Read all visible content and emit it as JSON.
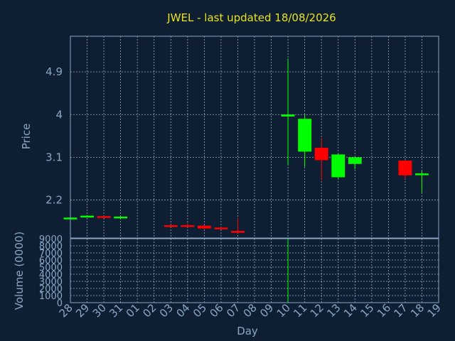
{
  "chart_data": {
    "type": "candlestick",
    "title": "JWEL - last updated 18/08/2026",
    "xlabel": "Day",
    "price_panel": {
      "ylabel": "Price",
      "ylim": [
        1.4,
        5.65
      ],
      "yticks": [
        2.2,
        3.1,
        4,
        4.9
      ],
      "ytick_labels": [
        "2.2",
        "3.1",
        "4",
        "4.9"
      ]
    },
    "volume_panel": {
      "ylabel": "Volume (0000)",
      "ylim": [
        0,
        9000
      ],
      "yticks": [
        0,
        1000,
        2000,
        3000,
        4000,
        5000,
        6000,
        7000,
        8000,
        9000
      ],
      "ytick_labels": [
        "0",
        "1000",
        "2000",
        "3000",
        "4000",
        "5000",
        "6000",
        "7000",
        "8000",
        "9000"
      ]
    },
    "x_labels": [
      "28",
      "29",
      "30",
      "31",
      "01",
      "02",
      "03",
      "04",
      "05",
      "06",
      "07",
      "08",
      "09",
      "10",
      "11",
      "12",
      "13",
      "14",
      "15",
      "16",
      "17",
      "18",
      "19"
    ],
    "candles": [
      {
        "x": 0,
        "open": 1.82,
        "close": 1.83,
        "high": 1.84,
        "low": 1.81
      },
      {
        "x": 1,
        "open": 1.85,
        "close": 1.87,
        "high": 1.88,
        "low": 1.84
      },
      {
        "x": 2,
        "open": 1.86,
        "close": 1.85,
        "high": 1.87,
        "low": 1.84
      },
      {
        "x": 3,
        "open": 1.84,
        "close": 1.85,
        "high": 1.86,
        "low": 1.83
      },
      {
        "x": 6,
        "open": 1.67,
        "close": 1.65,
        "high": 1.68,
        "low": 1.64
      },
      {
        "x": 7,
        "open": 1.67,
        "close": 1.65,
        "high": 1.72,
        "low": 1.64
      },
      {
        "x": 8,
        "open": 1.66,
        "close": 1.6,
        "high": 1.67,
        "low": 1.59
      },
      {
        "x": 9,
        "open": 1.62,
        "close": 1.59,
        "high": 1.63,
        "low": 1.58
      },
      {
        "x": 10,
        "open": 1.55,
        "close": 1.51,
        "high": 1.82,
        "low": 1.5
      },
      {
        "x": 13,
        "open": 3.96,
        "close": 4.0,
        "high": 5.18,
        "low": 2.94
      },
      {
        "x": 14,
        "open": 3.22,
        "close": 3.91,
        "high": 4.0,
        "low": 2.9
      },
      {
        "x": 15,
        "open": 3.3,
        "close": 3.04,
        "high": 3.51,
        "low": 2.62
      },
      {
        "x": 16,
        "open": 2.68,
        "close": 3.16,
        "high": 3.17,
        "low": 2.66
      },
      {
        "x": 17,
        "open": 2.96,
        "close": 3.1,
        "high": 3.11,
        "low": 2.85
      },
      {
        "x": 20,
        "open": 3.03,
        "close": 2.72,
        "high": 3.04,
        "low": 2.64
      },
      {
        "x": 21,
        "open": 2.73,
        "close": 2.76,
        "high": 2.82,
        "low": 2.36
      }
    ],
    "volumes": [
      {
        "x": 13,
        "value": 9000
      }
    ],
    "up_color": "#00ff00",
    "down_color": "#ff0000",
    "grid": true
  }
}
